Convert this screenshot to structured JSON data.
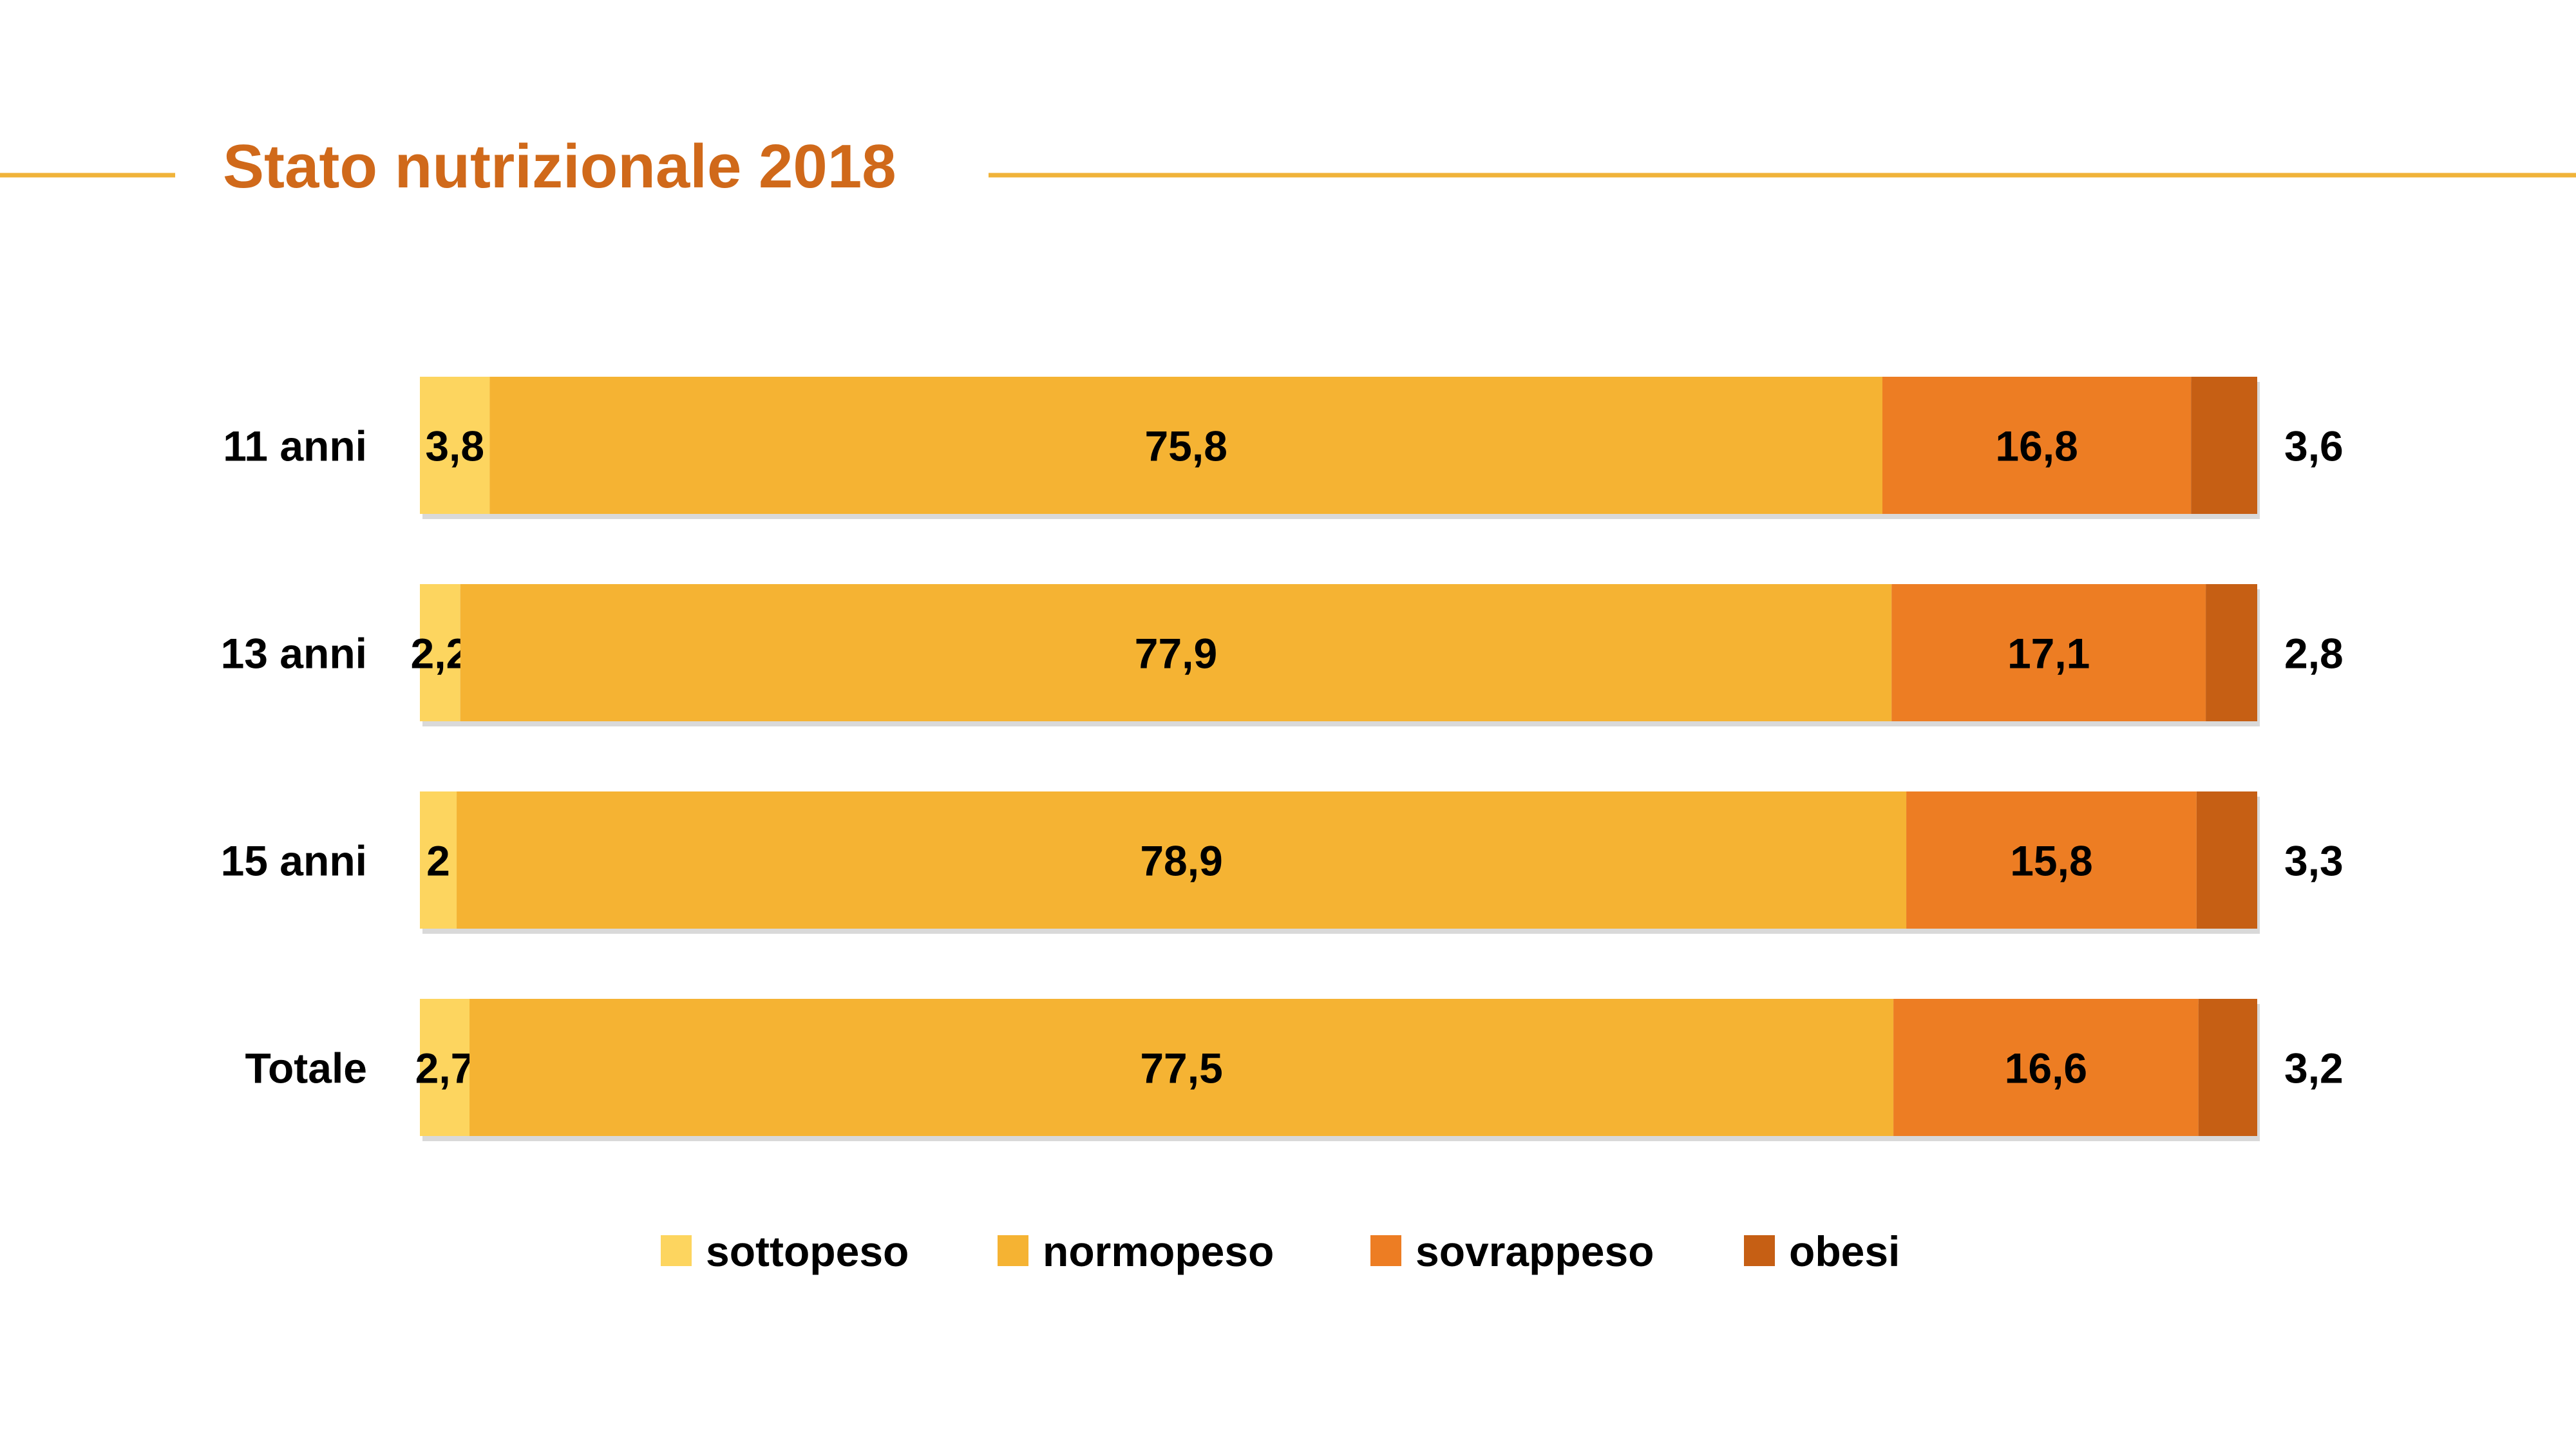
{
  "title": "Stato nutrizionale 2018",
  "colors": {
    "title": "#d0691a",
    "rule": "#f0b33a",
    "sottopeso": "#fdd55f",
    "normopeso": "#f5b333",
    "sovrappeso": "#ed7d23",
    "obesi": "#c65f14",
    "shadow": "#b9b9b9"
  },
  "chart_data": {
    "type": "bar",
    "orientation": "horizontal",
    "stacked": true,
    "normalized": "percent",
    "title": "Stato nutrizionale 2018",
    "categories": [
      "11 anni",
      "13 anni",
      "15 anni",
      "Totale"
    ],
    "series": [
      {
        "name": "sottopeso",
        "values": [
          3.8,
          2.2,
          2,
          2.7
        ],
        "labels": [
          "3,8",
          "2,2",
          "2",
          "2,7"
        ]
      },
      {
        "name": "normopeso",
        "values": [
          75.8,
          77.9,
          78.9,
          77.5
        ],
        "labels": [
          "75,8",
          "77,9",
          "78,9",
          "77,5"
        ]
      },
      {
        "name": "sovrappeso",
        "values": [
          16.8,
          17.1,
          15.8,
          16.6
        ],
        "labels": [
          "16,8",
          "17,1",
          "15,8",
          "16,6"
        ]
      },
      {
        "name": "obesi",
        "values": [
          3.6,
          2.8,
          3.3,
          3.2
        ],
        "labels": [
          "3,6",
          "2,8",
          "3,3",
          "3,2"
        ]
      }
    ],
    "xlim": [
      0,
      100
    ],
    "grid": false,
    "axes_visible": false,
    "legend": {
      "position": "bottom"
    }
  }
}
